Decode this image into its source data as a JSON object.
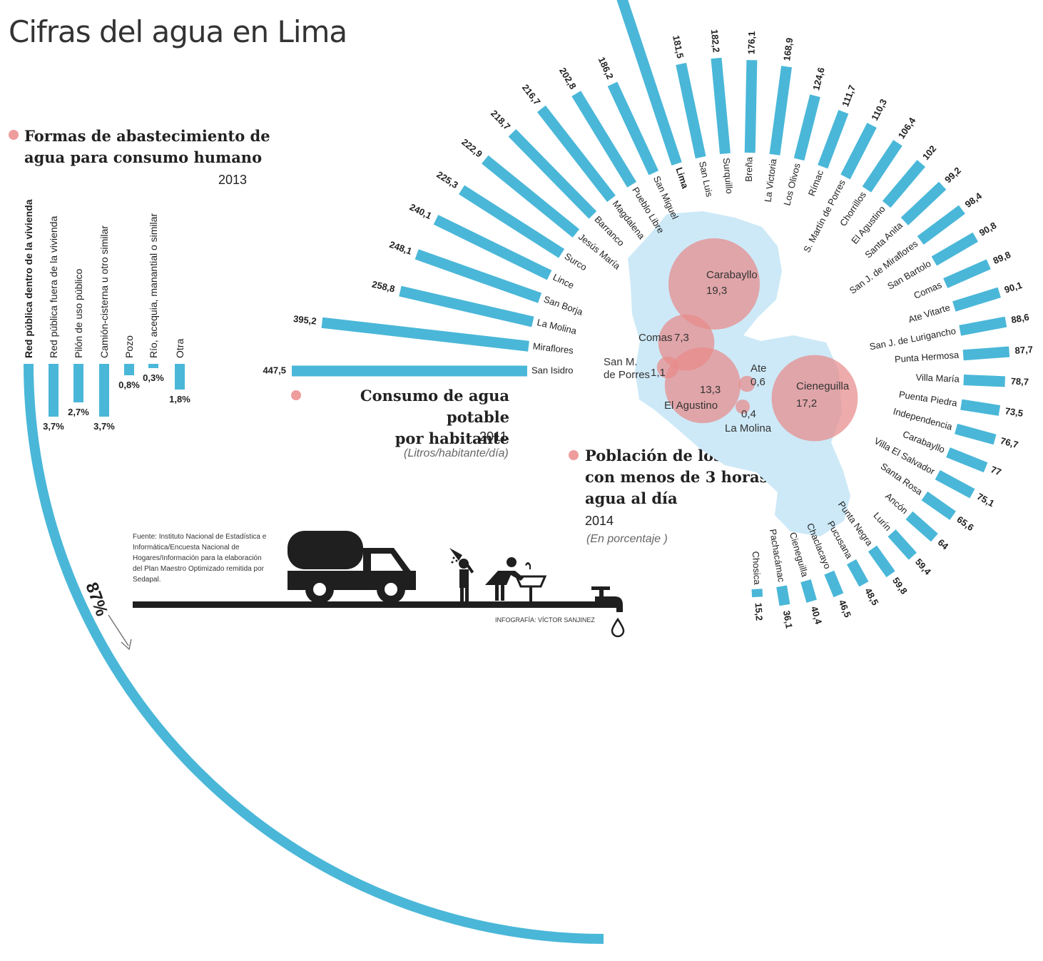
{
  "title": "Cifras del agua en Lima",
  "colors": {
    "bar": "#4ab7d8",
    "circle": "#e88a8a",
    "map": "#cde9f7",
    "dark": "#1f1f1f"
  },
  "source_text": "Fuente: Instituto Nacional de Estadística e Informática/Encuesta Nacional de Hogares/Información para la elaboración del Plan Maestro Optimizado remitida por Sedapal.",
  "credit": "INFOGRAFÍA: VÍCTOR SANJINEZ",
  "icons": [
    "water-truck-icon",
    "shower-icon",
    "washing-person-icon",
    "faucet-icon",
    "water-drop-icon"
  ],
  "sections": {
    "supply": {
      "title_line1": "Formas de abastecimiento de",
      "title_line2": "agua para consumo humano",
      "year": "2013"
    },
    "consumption": {
      "title_line1": "Consumo de agua potable",
      "title_line2": "por habitante",
      "year": "2011",
      "unit": "(Litros/habitante/día)"
    },
    "population": {
      "title_line1": "Población de los distritos",
      "title_line2": "con menos de 3 horas de",
      "title_line3": "agua al día",
      "year": "2014",
      "unit": "(En porcentaje )"
    }
  },
  "chart_data": [
    {
      "type": "bar",
      "categories": [
        "Red pública dentro de la vivienda",
        "Red pública fuera de la vivienda",
        "Pilón de uso público",
        "Camión-cisterna u otro similar",
        "Pozo",
        "Río, acequia, manantial o similar",
        "Otra"
      ],
      "values": [
        87,
        3.7,
        2.7,
        3.7,
        0.8,
        0.3,
        1.8
      ],
      "value_labels": [
        "87%",
        "3,7%",
        "2,7%",
        "3,7%",
        "0,8%",
        "0,3%",
        "1,8%"
      ]
    },
    {
      "type": "bar",
      "categories": [
        "San Isidro",
        "Miraflores",
        "La Molina",
        "San Borja",
        "Lince",
        "Surco",
        "Jesús María",
        "Barranco",
        "Magdalena",
        "Pueblo Libre",
        "San Miguel",
        "Lima",
        "San Luis",
        "Surquillo",
        "Breña",
        "La Victoria",
        "Los Olivos",
        "Rímac",
        "S. Martín de Porres",
        "Chorrillos",
        "El Agustino",
        "Santa Anita",
        "San J. de Miraflores",
        "San Bartolo",
        "Comas",
        "Ate Vitarte",
        "San J. de Lurigancho",
        "Punta Hermosa",
        "Villa María",
        "Puenta Piedra",
        "Independencia",
        "Carabayllo",
        "Villa El Salvador",
        "Santa Rosa",
        "Ancón",
        "Lurín",
        "Punta Negra",
        "Pucusana",
        "Chaclacayo",
        "Cieneguilla",
        "Pachacámac",
        "Chosica"
      ],
      "values": [
        447.5,
        395.2,
        258.8,
        248.1,
        240.1,
        225.3,
        222.9,
        218.7,
        216.7,
        202.8,
        186.2,
        447.5,
        181.5,
        182.2,
        176.1,
        168.9,
        124.6,
        111.7,
        110.3,
        106.4,
        102,
        99.2,
        98.4,
        90.8,
        89.8,
        90.1,
        88.6,
        87.7,
        78.7,
        73.5,
        76.7,
        77,
        75.1,
        65.6,
        64,
        59.4,
        59.8,
        48.5,
        46.5,
        40.4,
        36.1,
        15.2
      ],
      "value_labels": [
        "447,5",
        "395,2",
        "258,8",
        "248,1",
        "240,1",
        "225,3",
        "222,9",
        "218,7",
        "216,7",
        "202,8",
        "186,2",
        "447,5",
        "181,5",
        "182,2",
        "176,1",
        "168,9",
        "124,6",
        "111,7",
        "110,3",
        "106,4",
        "102",
        "99,2",
        "98,4",
        "90,8",
        "89,8",
        "90,1",
        "88,6",
        "87,7",
        "78,7",
        "73,5",
        "76,7",
        "77",
        "75,1",
        "65,6",
        "64",
        "59,4",
        "59,8",
        "48,5",
        "46,5",
        "40,4",
        "36,1",
        "15,2"
      ],
      "bold_category": "Lima"
    },
    {
      "type": "scatter",
      "categories": [
        "Carabayllo",
        "Comas",
        "San M. de Porres",
        "El Agustino",
        "Ate",
        "La Molina",
        "Cieneguilla"
      ],
      "values": [
        19.3,
        7.3,
        1.1,
        13.3,
        0.6,
        0.4,
        17.2
      ],
      "value_labels": [
        "19,3",
        "7,3",
        "1,1",
        "13,3",
        "0,6",
        "0,4",
        "17,2"
      ]
    }
  ]
}
